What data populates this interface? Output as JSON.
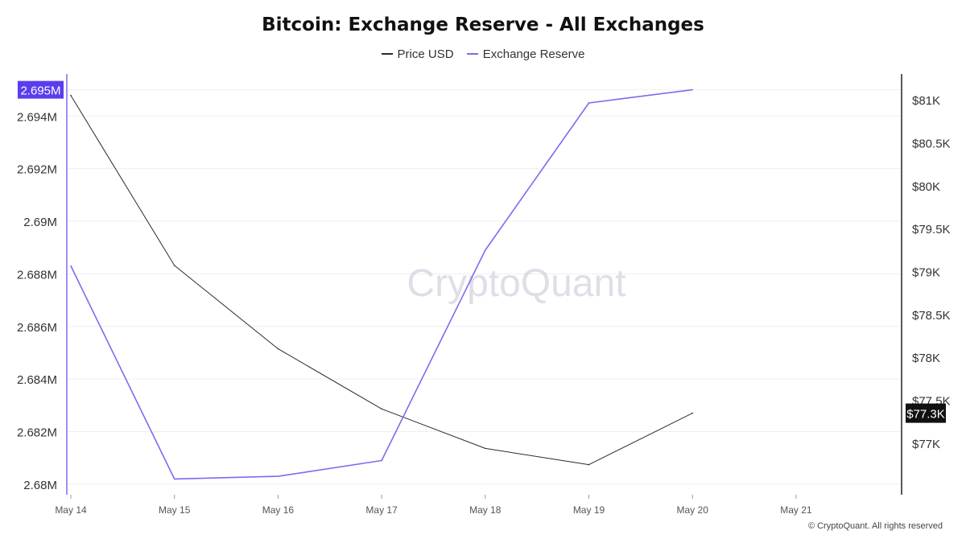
{
  "chart_data": {
    "type": "line",
    "title": "Bitcoin: Exchange Reserve - All Exchanges",
    "categories": [
      "May 14",
      "May 15",
      "May 16",
      "May 17",
      "May 18",
      "May 19",
      "May 20",
      "May 21"
    ],
    "series": [
      {
        "name": "Price USD",
        "axis": "right",
        "color": "#2b2b2b",
        "values": [
          81050,
          79070,
          78100,
          77400,
          76940,
          76750,
          77350,
          null
        ]
      },
      {
        "name": "Exchange Reserve",
        "axis": "left",
        "color": "#7b6cf0",
        "values": [
          2688300,
          2680200,
          2680300,
          2680900,
          2688900,
          2694500,
          2695000,
          null
        ]
      }
    ],
    "y_left": {
      "ticks": [
        2680000,
        2682000,
        2684000,
        2686000,
        2688000,
        2690000,
        2692000,
        2694000
      ],
      "tick_labels": [
        "2.68M",
        "2.682M",
        "2.684M",
        "2.686M",
        "2.688M",
        "2.69M",
        "2.692M",
        "2.694M"
      ],
      "range": [
        2679600,
        2695600
      ],
      "highlight_value": 2695000,
      "highlight_label": "2.695M"
    },
    "y_right": {
      "ticks": [
        77000,
        77500,
        78000,
        78500,
        79000,
        79500,
        80000,
        80500,
        81000
      ],
      "tick_labels": [
        "$77K",
        "$77.5K",
        "$78K",
        "$78.5K",
        "$79K",
        "$79.5K",
        "$80K",
        "$80.5K",
        "$81K"
      ],
      "range": [
        76400,
        81300
      ],
      "highlight_value": 77350,
      "highlight_label": "$77.3K"
    },
    "grid": true,
    "legend_position": "top-center",
    "watermark": "CryptoQuant",
    "copyright": "© CryptoQuant. All rights reserved"
  }
}
